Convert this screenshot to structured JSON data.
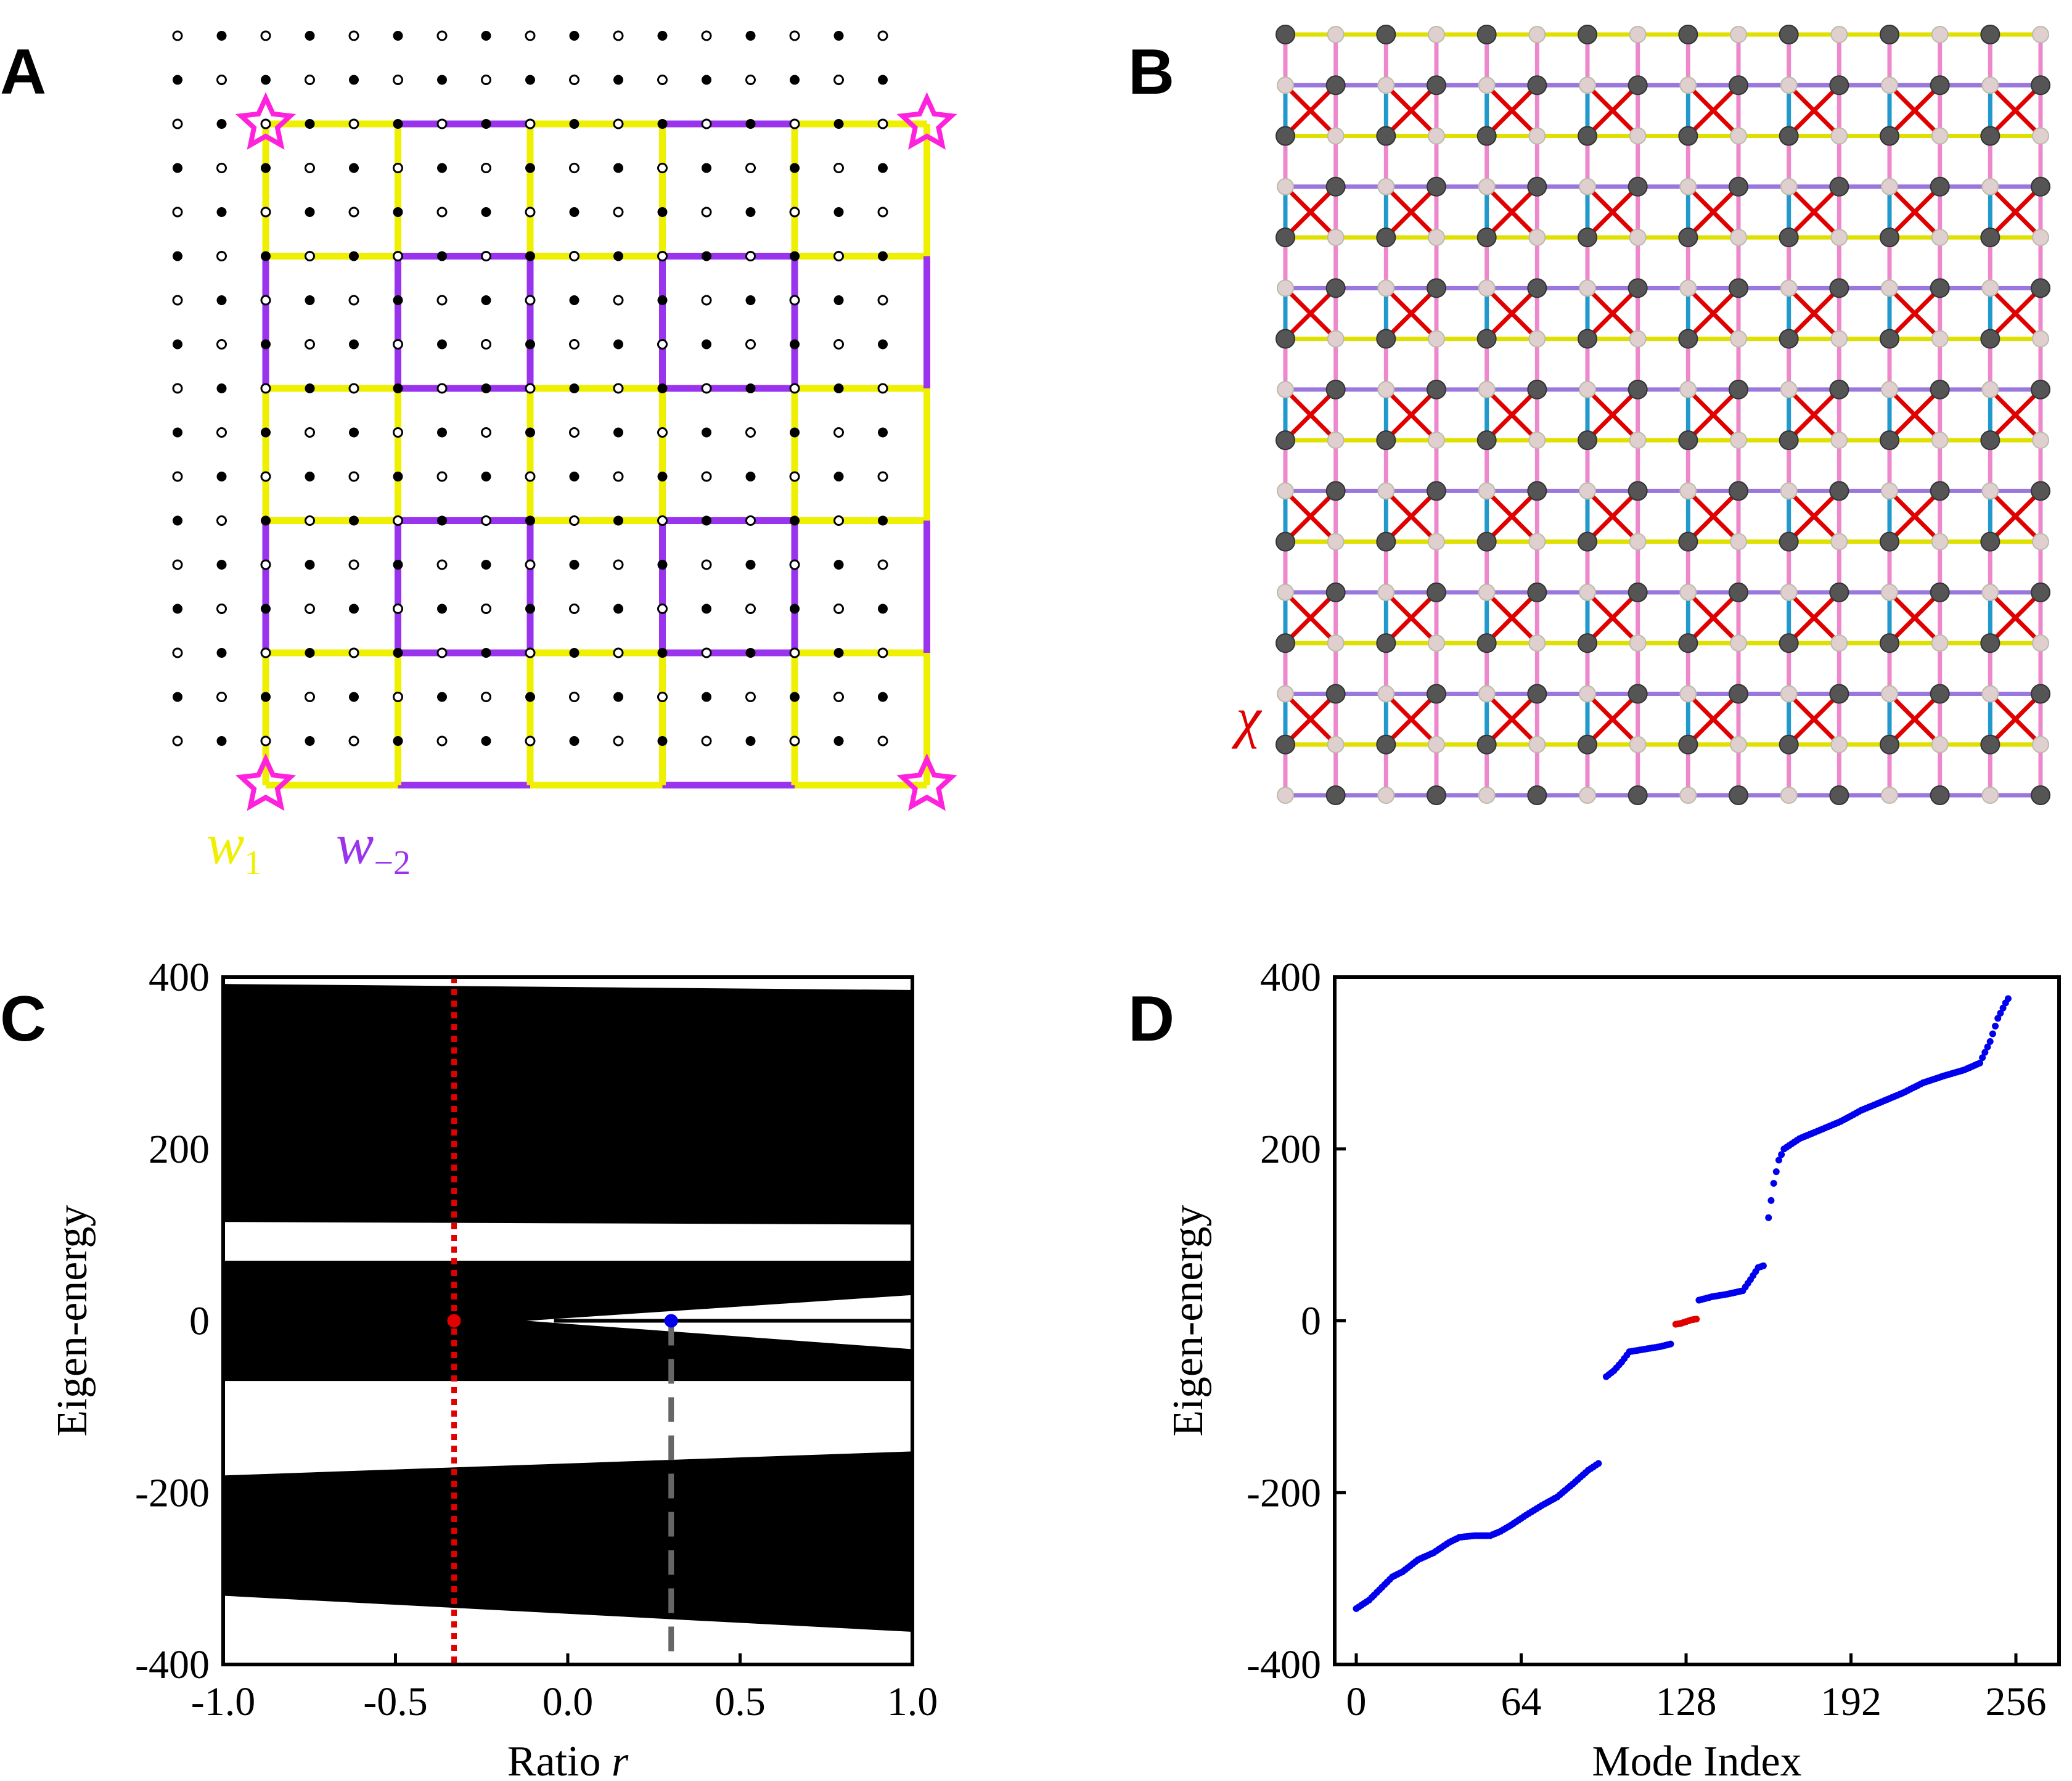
{
  "panel_labels": {
    "a": "A",
    "b": "B",
    "c": "C",
    "d": "D"
  },
  "colors": {
    "w1": "#eef000",
    "w_minus2": "#9933ee",
    "star": "#ff22dd",
    "chi": "#dd0000",
    "pink_bond": "#ee88cc",
    "blue_bond": "#2299cc",
    "yellow_bond": "#e0e000",
    "purple_bond": "#9977dd",
    "red_mark": "#e00000",
    "blue_mark": "#0000ee",
    "gray_dash": "#666666"
  },
  "panel_a": {
    "w1_letter": "w",
    "w1_sub": "1",
    "w2_letter": "w",
    "w2_sub": "−2"
  },
  "panel_b": {
    "chi_label": "χ"
  },
  "chart_data": [
    {
      "panel": "C",
      "type": "area",
      "xlabel_text": "Ratio ",
      "xlabel_var": "r",
      "ylabel": "Eigen-energy",
      "xlim": [
        -1.0,
        1.0
      ],
      "ylim": [
        -400,
        400
      ],
      "xticks": [
        "-1.0",
        "-0.5",
        "0.0",
        "0.5",
        "1.0"
      ],
      "yticks": [
        "400",
        "200",
        "0",
        "-200",
        "-400"
      ],
      "bands": [
        {
          "name": "upper band",
          "lower": [
            [
              -1.0,
              115
            ],
            [
              1.0,
              112
            ]
          ],
          "upper": [
            [
              -1.0,
              392
            ],
            [
              1.0,
              385
            ]
          ]
        },
        {
          "name": "middle band",
          "lower": [
            [
              -1.0,
              -70
            ],
            [
              1.0,
              -70
            ]
          ],
          "upper": [
            [
              -1.0,
              70
            ],
            [
              1.0,
              70
            ]
          ]
        },
        {
          "name": "lower band",
          "lower": [
            [
              -1.0,
              -320
            ],
            [
              1.0,
              -362
            ]
          ],
          "upper": [
            [
              -1.0,
              -180
            ],
            [
              1.0,
              -152
            ]
          ]
        }
      ],
      "gap_wedge": {
        "apex_x": -0.12,
        "end_x": 1.0,
        "upper_end": 30,
        "lower_end": -33,
        "line_y": 0
      },
      "markers": [
        {
          "name": "red point",
          "x": -0.33,
          "y": 0,
          "color": "red",
          "line": "dotted"
        },
        {
          "name": "blue point",
          "x": 0.3,
          "y": 0,
          "color": "blue",
          "line": "dashed"
        }
      ]
    },
    {
      "panel": "D",
      "type": "scatter",
      "xlabel": "Mode Index",
      "ylabel": "Eigen-energy",
      "xlim": [
        0,
        256
      ],
      "ylim": [
        -400,
        400
      ],
      "xticks": [
        "0",
        "64",
        "128",
        "192",
        "256"
      ],
      "yticks": [
        "400",
        "200",
        "0",
        "-200",
        "-400"
      ],
      "series": [
        {
          "name": "bulk modes",
          "color": "blue",
          "points": [
            [
              0,
              -335
            ],
            [
              5,
              -325
            ],
            [
              10,
              -310
            ],
            [
              14,
              -298
            ],
            [
              18,
              -292
            ],
            [
              24,
              -278
            ],
            [
              30,
              -270
            ],
            [
              36,
              -258
            ],
            [
              40,
              -252
            ],
            [
              46,
              -250
            ],
            [
              52,
              -250
            ],
            [
              56,
              -245
            ],
            [
              60,
              -238
            ],
            [
              66,
              -226
            ],
            [
              72,
              -215
            ],
            [
              78,
              -205
            ],
            [
              84,
              -190
            ],
            [
              90,
              -174
            ],
            [
              94,
              -166
            ],
            [
              97,
              -65
            ],
            [
              100,
              -58
            ],
            [
              103,
              -48
            ],
            [
              106,
              -36
            ],
            [
              112,
              -33
            ],
            [
              118,
              -30
            ],
            [
              122,
              -27
            ],
            [
              133,
              24
            ],
            [
              138,
              28
            ],
            [
              144,
              31
            ],
            [
              150,
              35
            ],
            [
              153,
              48
            ],
            [
              156,
              62
            ],
            [
              158,
              64
            ],
            [
              160,
              120
            ],
            [
              162,
              160
            ],
            [
              164,
              187
            ],
            [
              166,
              200
            ],
            [
              172,
              212
            ],
            [
              180,
              222
            ],
            [
              188,
              232
            ],
            [
              196,
              245
            ],
            [
              204,
              255
            ],
            [
              212,
              265
            ],
            [
              220,
              277
            ],
            [
              228,
              285
            ],
            [
              236,
              292
            ],
            [
              242,
              300
            ],
            [
              246,
              325
            ],
            [
              249,
              352
            ],
            [
              252,
              370
            ],
            [
              253,
              375
            ]
          ]
        },
        {
          "name": "corner modes",
          "color": "red",
          "points": [
            [
              124,
              -4
            ],
            [
              126,
              -3
            ],
            [
              128,
              -1
            ],
            [
              130,
              1
            ],
            [
              132,
              2
            ]
          ]
        }
      ]
    }
  ]
}
